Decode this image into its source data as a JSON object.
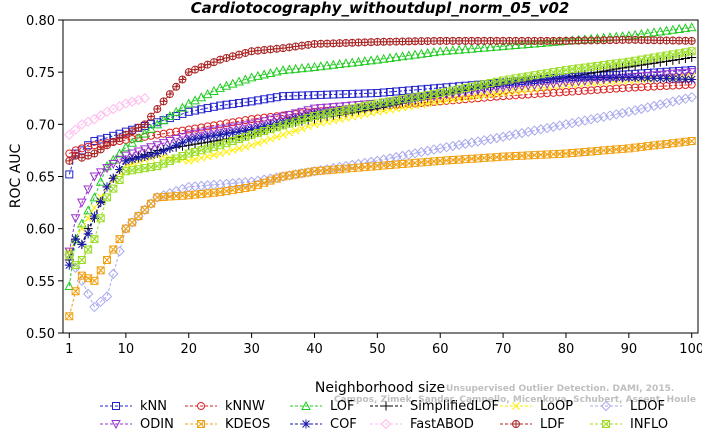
{
  "chart_data": {
    "type": "line",
    "title": "Cardiotocography_withoutdupl_norm_05_v02",
    "xlabel": "Neighborhood size",
    "ylabel": "ROC AUC",
    "xlim": [
      0,
      101
    ],
    "ylim": [
      0.5,
      0.8
    ],
    "x_ticks": [
      1,
      10,
      20,
      30,
      40,
      50,
      60,
      70,
      80,
      90,
      100
    ],
    "y_ticks": [
      0.5,
      0.55,
      0.6,
      0.65,
      0.7,
      0.75,
      0.8
    ],
    "legend_position": "bottom",
    "watermark": [
      "Unsupervised Outlier Detection. DAMI, 2015.",
      "Campos, Zimek, Sander, Campello, Micenkova, Schubert, Assent, Houle"
    ],
    "series": [
      {
        "name": "kNN",
        "color": "#2222cc",
        "marker": "square",
        "points": [
          [
            1,
            0.652
          ],
          [
            2,
            0.672
          ],
          [
            3,
            0.675
          ],
          [
            4,
            0.68
          ],
          [
            5,
            0.684
          ],
          [
            7,
            0.687
          ],
          [
            10,
            0.693
          ],
          [
            15,
            0.702
          ],
          [
            20,
            0.712
          ],
          [
            25,
            0.718
          ],
          [
            30,
            0.722
          ],
          [
            35,
            0.727
          ],
          [
            40,
            0.728
          ],
          [
            50,
            0.73
          ],
          [
            60,
            0.735
          ],
          [
            70,
            0.74
          ],
          [
            80,
            0.745
          ],
          [
            90,
            0.748
          ],
          [
            100,
            0.752
          ]
        ]
      },
      {
        "name": "kNNW",
        "color": "#dd2222",
        "marker": "circle",
        "points": [
          [
            1,
            0.672
          ],
          [
            2,
            0.675
          ],
          [
            3,
            0.677
          ],
          [
            5,
            0.68
          ],
          [
            10,
            0.685
          ],
          [
            15,
            0.69
          ],
          [
            20,
            0.695
          ],
          [
            30,
            0.705
          ],
          [
            40,
            0.712
          ],
          [
            50,
            0.717
          ],
          [
            60,
            0.722
          ],
          [
            70,
            0.727
          ],
          [
            80,
            0.731
          ],
          [
            90,
            0.735
          ],
          [
            100,
            0.738
          ]
        ]
      },
      {
        "name": "LOF",
        "color": "#22cc22",
        "marker": "triangle-up",
        "points": [
          [
            1,
            0.545
          ],
          [
            2,
            0.59
          ],
          [
            3,
            0.605
          ],
          [
            5,
            0.63
          ],
          [
            7,
            0.66
          ],
          [
            10,
            0.678
          ],
          [
            15,
            0.7
          ],
          [
            20,
            0.72
          ],
          [
            25,
            0.735
          ],
          [
            30,
            0.745
          ],
          [
            35,
            0.752
          ],
          [
            40,
            0.755
          ],
          [
            50,
            0.762
          ],
          [
            60,
            0.77
          ],
          [
            70,
            0.775
          ],
          [
            80,
            0.78
          ],
          [
            90,
            0.785
          ],
          [
            100,
            0.793
          ]
        ]
      },
      {
        "name": "SimplifiedLOF",
        "color": "#000000",
        "marker": "plus",
        "points": [
          [
            1,
            0.57
          ],
          [
            2,
            0.59
          ],
          [
            3,
            0.585
          ],
          [
            4,
            0.6
          ],
          [
            5,
            0.61
          ],
          [
            7,
            0.64
          ],
          [
            10,
            0.665
          ],
          [
            15,
            0.675
          ],
          [
            20,
            0.68
          ],
          [
            25,
            0.685
          ],
          [
            30,
            0.69
          ],
          [
            35,
            0.7
          ],
          [
            40,
            0.705
          ],
          [
            50,
            0.715
          ],
          [
            60,
            0.728
          ],
          [
            70,
            0.738
          ],
          [
            80,
            0.745
          ],
          [
            90,
            0.755
          ],
          [
            100,
            0.764
          ]
        ]
      },
      {
        "name": "LoOP",
        "color": "#ffee00",
        "marker": "x",
        "points": [
          [
            1,
            0.578
          ],
          [
            2,
            0.59
          ],
          [
            3,
            0.6
          ],
          [
            5,
            0.62
          ],
          [
            7,
            0.64
          ],
          [
            10,
            0.66
          ],
          [
            15,
            0.67
          ],
          [
            20,
            0.665
          ],
          [
            25,
            0.672
          ],
          [
            30,
            0.68
          ],
          [
            40,
            0.7
          ],
          [
            50,
            0.712
          ],
          [
            60,
            0.722
          ],
          [
            70,
            0.73
          ],
          [
            80,
            0.738
          ],
          [
            90,
            0.742
          ],
          [
            100,
            0.746
          ]
        ]
      },
      {
        "name": "LDOF",
        "color": "#aaaaee",
        "marker": "diamond",
        "points": [
          [
            1,
            0.575
          ],
          [
            3,
            0.55
          ],
          [
            5,
            0.525
          ],
          [
            7,
            0.535
          ],
          [
            10,
            0.6
          ],
          [
            15,
            0.63
          ],
          [
            20,
            0.64
          ],
          [
            30,
            0.645
          ],
          [
            40,
            0.655
          ],
          [
            50,
            0.665
          ],
          [
            60,
            0.677
          ],
          [
            70,
            0.688
          ],
          [
            80,
            0.7
          ],
          [
            90,
            0.712
          ],
          [
            100,
            0.726
          ]
        ]
      },
      {
        "name": "ODIN",
        "color": "#9933cc",
        "marker": "triangle-down",
        "points": [
          [
            1,
            0.578
          ],
          [
            2,
            0.61
          ],
          [
            3,
            0.625
          ],
          [
            5,
            0.65
          ],
          [
            10,
            0.67
          ],
          [
            15,
            0.68
          ],
          [
            20,
            0.69
          ],
          [
            30,
            0.7
          ],
          [
            40,
            0.715
          ],
          [
            50,
            0.72
          ],
          [
            60,
            0.728
          ],
          [
            70,
            0.735
          ],
          [
            80,
            0.74
          ],
          [
            90,
            0.745
          ],
          [
            100,
            0.75
          ]
        ]
      },
      {
        "name": "KDEOS",
        "color": "#f0a010",
        "marker": "square-x",
        "points": [
          [
            1,
            0.516
          ],
          [
            2,
            0.54
          ],
          [
            3,
            0.555
          ],
          [
            5,
            0.55
          ],
          [
            7,
            0.57
          ],
          [
            10,
            0.6
          ],
          [
            15,
            0.63
          ],
          [
            20,
            0.632
          ],
          [
            25,
            0.635
          ],
          [
            30,
            0.64
          ],
          [
            35,
            0.65
          ],
          [
            40,
            0.655
          ],
          [
            50,
            0.66
          ],
          [
            60,
            0.665
          ],
          [
            70,
            0.669
          ],
          [
            80,
            0.672
          ],
          [
            90,
            0.677
          ],
          [
            100,
            0.684
          ]
        ]
      },
      {
        "name": "COF",
        "color": "#1a1aaa",
        "marker": "asterisk",
        "points": [
          [
            1,
            0.565
          ],
          [
            2,
            0.59
          ],
          [
            3,
            0.585
          ],
          [
            4,
            0.595
          ],
          [
            5,
            0.612
          ],
          [
            7,
            0.64
          ],
          [
            10,
            0.665
          ],
          [
            15,
            0.672
          ],
          [
            20,
            0.685
          ],
          [
            25,
            0.69
          ],
          [
            30,
            0.695
          ],
          [
            35,
            0.702
          ],
          [
            40,
            0.71
          ],
          [
            50,
            0.718
          ],
          [
            60,
            0.73
          ],
          [
            70,
            0.74
          ],
          [
            80,
            0.745
          ],
          [
            90,
            0.745
          ],
          [
            100,
            0.743
          ]
        ]
      },
      {
        "name": "FastABOD",
        "color": "#ffbbee",
        "marker": "diamond",
        "points": [
          [
            1,
            0.69
          ],
          [
            2,
            0.695
          ],
          [
            3,
            0.7
          ],
          [
            5,
            0.705
          ],
          [
            7,
            0.712
          ],
          [
            10,
            0.72
          ],
          [
            13,
            0.725
          ]
        ]
      },
      {
        "name": "LDF",
        "color": "#aa2222",
        "marker": "circle-plus",
        "points": [
          [
            1,
            0.665
          ],
          [
            2,
            0.67
          ],
          [
            3,
            0.668
          ],
          [
            5,
            0.672
          ],
          [
            7,
            0.68
          ],
          [
            10,
            0.69
          ],
          [
            13,
            0.7
          ],
          [
            16,
            0.722
          ],
          [
            20,
            0.75
          ],
          [
            25,
            0.762
          ],
          [
            30,
            0.77
          ],
          [
            35,
            0.773
          ],
          [
            40,
            0.777
          ],
          [
            50,
            0.779
          ],
          [
            60,
            0.78
          ],
          [
            70,
            0.78
          ],
          [
            80,
            0.78
          ],
          [
            90,
            0.781
          ],
          [
            100,
            0.78
          ]
        ]
      },
      {
        "name": "INFLO",
        "color": "#99dd22",
        "marker": "square-x",
        "points": [
          [
            1,
            0.575
          ],
          [
            2,
            0.565
          ],
          [
            3,
            0.57
          ],
          [
            5,
            0.59
          ],
          [
            7,
            0.63
          ],
          [
            10,
            0.655
          ],
          [
            15,
            0.66
          ],
          [
            20,
            0.672
          ],
          [
            25,
            0.68
          ],
          [
            30,
            0.69
          ],
          [
            40,
            0.708
          ],
          [
            50,
            0.72
          ],
          [
            60,
            0.73
          ],
          [
            70,
            0.742
          ],
          [
            80,
            0.752
          ],
          [
            90,
            0.76
          ],
          [
            100,
            0.77
          ]
        ]
      }
    ]
  }
}
